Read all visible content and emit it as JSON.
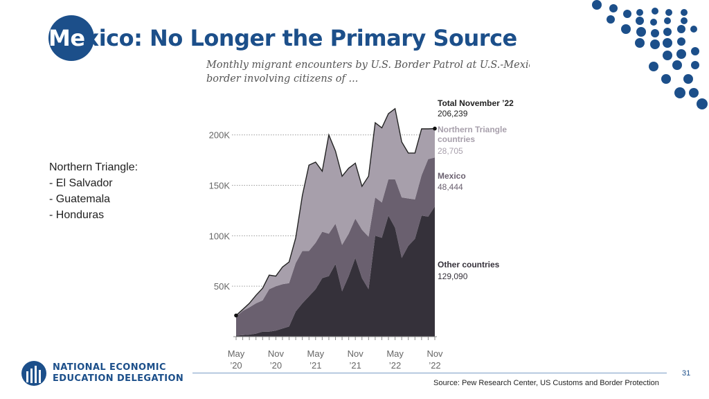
{
  "slide": {
    "title_me": "Me",
    "title_rest": "xico: No Longer the Primary Source",
    "note_heading": "Northern Triangle:",
    "note_items": [
      "- El Salvador",
      "- Guatemala",
      "- Honduras"
    ],
    "logo_line1": "NATIONAL ECONOMIC",
    "logo_line2": "EDUCATION DELEGATION",
    "page_number": "31",
    "source": "Source: Pew Research Center, US Customs and Border Protection",
    "colors": {
      "brand_blue": "#1c4f8a",
      "other": "#35313a",
      "mexico": "#6a606f",
      "northern_triangle": "#a79fab"
    }
  },
  "chart_data": {
    "type": "area",
    "stacked": true,
    "title": "Monthly migrant encounters by U.S. Border Patrol at U.S.-Mexico",
    "subtitle": "border involving citizens of ...",
    "xlabel": "",
    "ylabel": "",
    "ylim": [
      0,
      230000
    ],
    "yticks": [
      {
        "value": 50000,
        "label": "50K"
      },
      {
        "value": 100000,
        "label": "100K"
      },
      {
        "value": 150000,
        "label": "150K"
      },
      {
        "value": 200000,
        "label": "200K"
      }
    ],
    "xtick_labels": [
      {
        "index": 0,
        "month": "May",
        "year": "’20"
      },
      {
        "index": 6,
        "month": "Nov",
        "year": "’20"
      },
      {
        "index": 12,
        "month": "May",
        "year": "’21"
      },
      {
        "index": 18,
        "month": "Nov",
        "year": "’21"
      },
      {
        "index": 24,
        "month": "May",
        "year": "’22"
      },
      {
        "index": 30,
        "month": "Nov",
        "year": "’22"
      }
    ],
    "x": [
      "May 2020",
      "Jun 2020",
      "Jul 2020",
      "Aug 2020",
      "Sep 2020",
      "Oct 2020",
      "Nov 2020",
      "Dec 2020",
      "Jan 2021",
      "Feb 2021",
      "Mar 2021",
      "Apr 2021",
      "May 2021",
      "Jun 2021",
      "Jul 2021",
      "Aug 2021",
      "Sep 2021",
      "Oct 2021",
      "Nov 2021",
      "Dec 2021",
      "Jan 2022",
      "Feb 2022",
      "Mar 2022",
      "Apr 2022",
      "May 2022",
      "Jun 2022",
      "Jul 2022",
      "Aug 2022",
      "Sep 2022",
      "Oct 2022",
      "Nov 2022"
    ],
    "series": [
      {
        "name": "Other countries",
        "color": "#35313a",
        "values": [
          1000,
          1500,
          2000,
          3000,
          5000,
          5000,
          6000,
          8000,
          10000,
          25000,
          33000,
          40000,
          47000,
          58000,
          60000,
          72000,
          45000,
          60000,
          78000,
          58000,
          47000,
          100000,
          98000,
          120000,
          108000,
          78000,
          90000,
          97000,
          120000,
          119000,
          129090
        ]
      },
      {
        "name": "Mexico",
        "color": "#6a606f",
        "values": [
          19000,
          24000,
          27000,
          30000,
          31000,
          42000,
          44000,
          44000,
          43000,
          48000,
          52000,
          45000,
          46000,
          46000,
          42000,
          40000,
          46000,
          42000,
          39000,
          48000,
          52000,
          38000,
          35000,
          36000,
          48000,
          60000,
          47000,
          39000,
          40000,
          57000,
          48444
        ]
      },
      {
        "name": "Northern Triangle countries",
        "color": "#a79fab",
        "values": [
          1000,
          1500,
          4000,
          8000,
          12000,
          14000,
          10000,
          17000,
          21000,
          25000,
          55000,
          85000,
          80000,
          60000,
          98000,
          72000,
          68000,
          65000,
          55000,
          43000,
          60000,
          74000,
          74000,
          65000,
          70000,
          55000,
          45000,
          46000,
          46000,
          30000,
          28705
        ]
      }
    ],
    "totals": [
      21000,
      27000,
      33000,
      41000,
      48000,
      61000,
      60000,
      69000,
      74000,
      98000,
      140000,
      170000,
      173000,
      164000,
      200000,
      184000,
      159000,
      167000,
      172000,
      149000,
      159000,
      212000,
      207000,
      221000,
      226000,
      193000,
      182000,
      182000,
      206000,
      206000,
      206239
    ],
    "annotations": [
      {
        "series": "total",
        "label": "Total November ’22",
        "value_label": "206,239"
      },
      {
        "series": "Northern Triangle countries",
        "label_lines": [
          "Northern Triangle",
          "countries"
        ],
        "value_label": "28,705"
      },
      {
        "series": "Mexico",
        "label_lines": [
          "Mexico"
        ],
        "value_label": "48,444"
      },
      {
        "series": "Other countries",
        "label_lines": [
          "Other countries"
        ],
        "value_label": "129,090"
      }
    ]
  }
}
